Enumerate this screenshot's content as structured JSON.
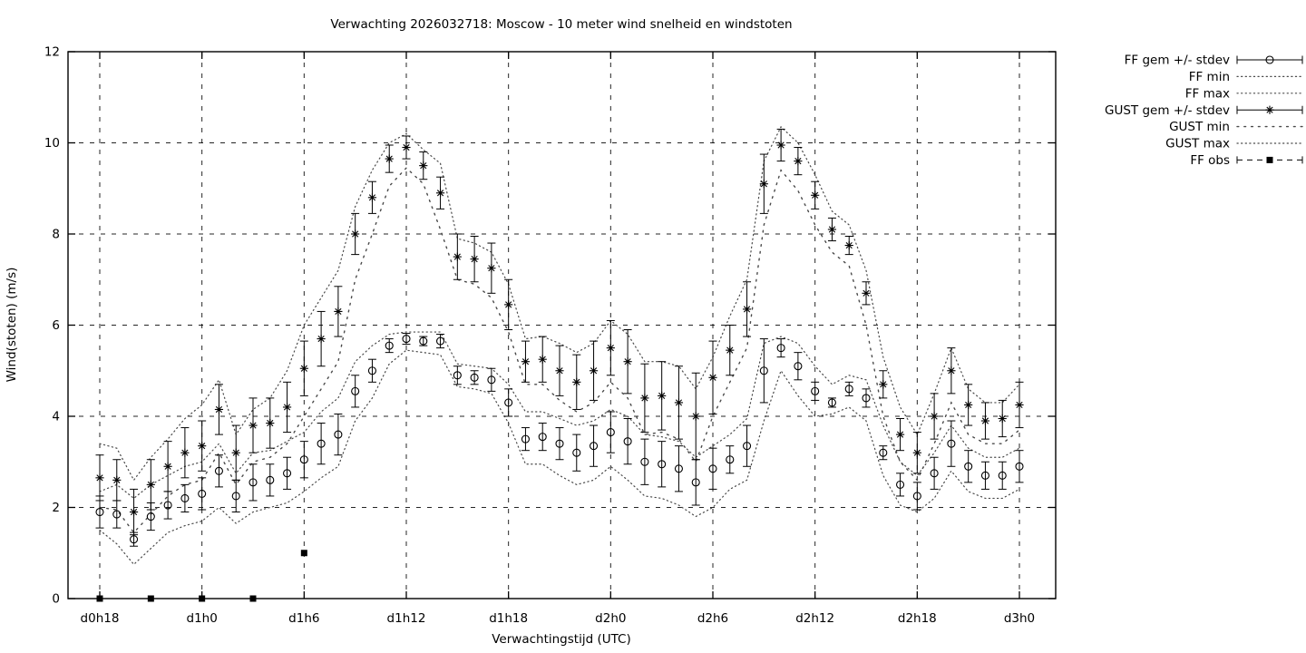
{
  "window": {
    "background": "#ffffff",
    "foreground": "#000000",
    "envelope_dot_color": "#4a4a4a"
  },
  "chart_data": {
    "type": "line",
    "title": "Verwachting 2026032718: Moscow - 10 meter wind snelheid en windstoten",
    "xlabel": "Verwachtingstijd (UTC)",
    "ylabel": "Wind(stoten) (m/s)",
    "ylim": [
      0,
      12
    ],
    "y_ticks": [
      0,
      2,
      4,
      6,
      8,
      10,
      12
    ],
    "grid": "dashed",
    "legend_position": "outside-top-right",
    "x_ticks": [
      {
        "hour": 0,
        "label": "d0h18"
      },
      {
        "hour": 6,
        "label": "d1h0"
      },
      {
        "hour": 12,
        "label": "d1h6"
      },
      {
        "hour": 18,
        "label": "d1h12"
      },
      {
        "hour": 24,
        "label": "d1h18"
      },
      {
        "hour": 30,
        "label": "d2h0"
      },
      {
        "hour": 36,
        "label": "d2h6"
      },
      {
        "hour": 42,
        "label": "d2h12"
      },
      {
        "hour": 48,
        "label": "d2h18"
      },
      {
        "hour": 54,
        "label": "d3h0"
      }
    ],
    "hours": [
      0,
      1,
      2,
      3,
      4,
      5,
      6,
      7,
      8,
      9,
      10,
      11,
      12,
      13,
      14,
      15,
      16,
      17,
      18,
      19,
      20,
      21,
      22,
      23,
      24,
      25,
      26,
      27,
      28,
      29,
      30,
      31,
      32,
      33,
      34,
      35,
      36,
      37,
      38,
      39,
      40,
      41,
      42,
      43,
      44,
      45,
      46,
      47,
      48,
      49,
      50,
      51,
      52,
      53,
      54
    ],
    "series": [
      {
        "name": "FF gem +/- stdev",
        "style": "errorbar-circle",
        "values": [
          1.9,
          1.85,
          1.3,
          1.8,
          2.05,
          2.2,
          2.3,
          2.8,
          2.25,
          2.55,
          2.6,
          2.75,
          3.05,
          3.4,
          3.6,
          4.55,
          5.0,
          5.55,
          5.7,
          5.65,
          5.65,
          4.9,
          4.85,
          4.8,
          4.3,
          3.5,
          3.55,
          3.4,
          3.2,
          3.35,
          3.65,
          3.45,
          3.0,
          2.95,
          2.85,
          2.55,
          2.85,
          3.05,
          3.35,
          5.0,
          5.5,
          5.1,
          4.55,
          4.3,
          4.6,
          4.4,
          3.2,
          2.5,
          2.25,
          2.75,
          3.4,
          2.9,
          2.7,
          2.7,
          2.9
        ],
        "stdev": [
          0.35,
          0.3,
          0.15,
          0.3,
          0.3,
          0.3,
          0.35,
          0.35,
          0.35,
          0.4,
          0.35,
          0.35,
          0.4,
          0.45,
          0.45,
          0.35,
          0.25,
          0.15,
          0.12,
          0.1,
          0.15,
          0.2,
          0.15,
          0.25,
          0.3,
          0.25,
          0.3,
          0.35,
          0.4,
          0.45,
          0.45,
          0.5,
          0.5,
          0.5,
          0.5,
          0.5,
          0.45,
          0.3,
          0.45,
          0.7,
          0.2,
          0.3,
          0.2,
          0.1,
          0.15,
          0.2,
          0.15,
          0.25,
          0.3,
          0.35,
          0.5,
          0.35,
          0.3,
          0.3,
          0.35
        ]
      },
      {
        "name": "FF min",
        "style": "dot-fine",
        "values": [
          1.5,
          1.2,
          0.75,
          1.1,
          1.45,
          1.6,
          1.7,
          2.0,
          1.65,
          1.9,
          2.0,
          2.1,
          2.35,
          2.65,
          2.9,
          3.9,
          4.4,
          5.15,
          5.45,
          5.4,
          5.35,
          4.65,
          4.6,
          4.5,
          3.85,
          2.95,
          2.95,
          2.7,
          2.5,
          2.6,
          2.9,
          2.6,
          2.25,
          2.2,
          2.05,
          1.8,
          2.0,
          2.4,
          2.6,
          3.9,
          5.0,
          4.45,
          4.0,
          4.05,
          4.2,
          3.9,
          2.7,
          2.05,
          1.9,
          2.2,
          2.8,
          2.35,
          2.2,
          2.2,
          2.4
        ]
      },
      {
        "name": "FF max",
        "style": "dot-fine",
        "values": [
          2.35,
          2.5,
          2.2,
          2.5,
          2.7,
          2.9,
          3.0,
          3.4,
          2.75,
          3.2,
          3.25,
          3.45,
          3.65,
          4.1,
          4.4,
          5.2,
          5.55,
          5.8,
          5.85,
          5.85,
          5.85,
          5.15,
          5.1,
          5.05,
          4.7,
          4.1,
          4.1,
          3.95,
          3.8,
          3.9,
          4.15,
          4.0,
          3.6,
          3.55,
          3.45,
          3.1,
          3.35,
          3.6,
          3.95,
          5.6,
          5.75,
          5.6,
          5.1,
          4.7,
          4.9,
          4.8,
          3.8,
          3.0,
          2.7,
          3.2,
          3.8,
          3.3,
          3.1,
          3.1,
          3.3
        ]
      },
      {
        "name": "GUST gem +/- stdev",
        "style": "errorbar-star",
        "values": [
          2.65,
          2.6,
          1.9,
          2.5,
          2.9,
          3.2,
          3.35,
          4.15,
          3.2,
          3.8,
          3.85,
          4.2,
          5.05,
          5.7,
          6.3,
          8.0,
          8.8,
          9.65,
          9.9,
          9.5,
          8.9,
          7.5,
          7.45,
          7.25,
          6.45,
          5.2,
          5.25,
          5.0,
          4.75,
          5.0,
          5.5,
          5.2,
          4.4,
          4.45,
          4.3,
          4.0,
          4.85,
          5.45,
          6.35,
          9.1,
          9.95,
          9.6,
          8.85,
          8.1,
          7.75,
          6.7,
          4.7,
          3.6,
          3.2,
          4.0,
          5.0,
          4.25,
          3.9,
          3.95,
          4.25
        ],
        "stdev": [
          0.5,
          0.45,
          0.5,
          0.55,
          0.55,
          0.55,
          0.55,
          0.55,
          0.6,
          0.6,
          0.55,
          0.55,
          0.6,
          0.6,
          0.55,
          0.45,
          0.35,
          0.3,
          0.25,
          0.3,
          0.35,
          0.5,
          0.5,
          0.55,
          0.55,
          0.45,
          0.5,
          0.55,
          0.6,
          0.65,
          0.6,
          0.7,
          0.75,
          0.75,
          0.8,
          0.95,
          0.8,
          0.55,
          0.6,
          0.65,
          0.35,
          0.3,
          0.3,
          0.25,
          0.2,
          0.25,
          0.3,
          0.35,
          0.45,
          0.5,
          0.5,
          0.45,
          0.4,
          0.4,
          0.5
        ]
      },
      {
        "name": "GUST min",
        "style": "dot-sparse",
        "values": [
          2.0,
          1.95,
          1.45,
          1.85,
          2.25,
          2.5,
          2.6,
          3.2,
          2.5,
          3.0,
          3.1,
          3.4,
          4.0,
          4.6,
          5.2,
          7.0,
          8.0,
          9.05,
          9.45,
          9.1,
          8.1,
          7.0,
          6.9,
          6.6,
          5.85,
          4.7,
          4.7,
          4.35,
          4.1,
          4.3,
          4.75,
          4.4,
          3.6,
          3.65,
          3.5,
          3.0,
          4.0,
          4.75,
          5.5,
          8.2,
          9.4,
          8.95,
          8.2,
          7.6,
          7.3,
          6.0,
          4.0,
          3.0,
          2.6,
          3.4,
          4.3,
          3.6,
          3.4,
          3.4,
          3.7
        ]
      },
      {
        "name": "GUST max",
        "style": "dot-fine",
        "values": [
          3.4,
          3.3,
          2.6,
          3.1,
          3.5,
          3.95,
          4.25,
          4.8,
          3.6,
          4.15,
          4.4,
          5.0,
          6.0,
          6.6,
          7.2,
          8.6,
          9.4,
          10.0,
          10.2,
          9.85,
          9.55,
          7.9,
          7.8,
          7.6,
          6.9,
          5.7,
          5.75,
          5.6,
          5.4,
          5.6,
          6.1,
          5.8,
          5.2,
          5.2,
          5.1,
          4.6,
          5.3,
          6.2,
          7.0,
          9.6,
          10.35,
          10.0,
          9.3,
          8.5,
          8.2,
          7.2,
          5.3,
          4.2,
          3.6,
          4.5,
          5.5,
          4.6,
          4.3,
          4.3,
          4.7
        ]
      },
      {
        "name": "FF obs",
        "style": "obs-square",
        "points": [
          {
            "hour": 0,
            "value": 0
          },
          {
            "hour": 3,
            "value": 0
          },
          {
            "hour": 6,
            "value": 0
          },
          {
            "hour": 9,
            "value": 0
          },
          {
            "hour": 12,
            "value": 1.0
          }
        ]
      }
    ]
  },
  "legend": {
    "entries": [
      {
        "label": "FF gem +/- stdev",
        "style": "errorbar-circle"
      },
      {
        "label": "FF min",
        "style": "dot-fine"
      },
      {
        "label": "FF max",
        "style": "dot-fine"
      },
      {
        "label": "GUST gem +/- stdev",
        "style": "errorbar-star"
      },
      {
        "label": "GUST min",
        "style": "dot-sparse"
      },
      {
        "label": "GUST max",
        "style": "dot-fine"
      },
      {
        "label": "FF obs",
        "style": "obs-square"
      }
    ]
  }
}
